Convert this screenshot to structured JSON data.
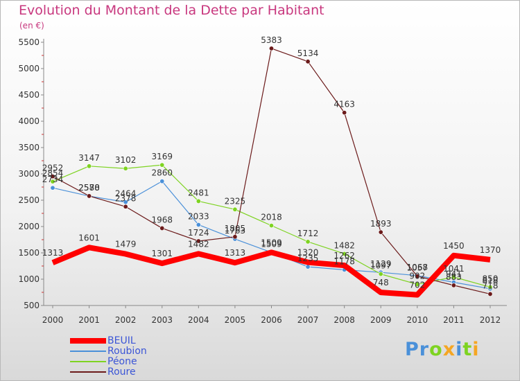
{
  "chart_data": {
    "type": "line",
    "title": "Evolution du Montant de la Dette par Habitant",
    "subtitle": "(en €)",
    "xlabel": "",
    "ylabel": "",
    "categories": [
      "2000",
      "2001",
      "2002",
      "2003",
      "2004",
      "2005",
      "2006",
      "2007",
      "2008",
      "2009",
      "2010",
      "2011",
      "2012"
    ],
    "ylim": [
      500,
      5500
    ],
    "yticks": [
      500,
      1000,
      1500,
      2000,
      2500,
      3000,
      3500,
      4000,
      4500,
      5000,
      5500
    ],
    "grid": false,
    "legend_position": "bottom-left",
    "series": [
      {
        "name": "BEUIL",
        "color": "#ff0000",
        "width": 8,
        "values": [
          1313,
          1601,
          1479,
          1301,
          1482,
          1313,
          1509,
          1320,
          1262,
          748,
          702,
          1450,
          1370
        ]
      },
      {
        "name": "Roubion",
        "color": "#4a90d9",
        "width": 1.2,
        "values": [
          2734,
          2578,
          2464,
          2860,
          2033,
          1763,
          1509,
          1235,
          1178,
          1129,
          1068,
          941,
          818
        ]
      },
      {
        "name": "Péone",
        "color": "#7ed321",
        "width": 1.2,
        "values": [
          2854,
          3147,
          3102,
          3169,
          2481,
          2325,
          2018,
          1712,
          1482,
          1097,
          902,
          1041,
          850
        ]
      },
      {
        "name": "Roure",
        "color": "#6b1a1a",
        "width": 1.2,
        "values": [
          2952,
          2580,
          2378,
          1968,
          1724,
          1805,
          5383,
          5134,
          4163,
          1893,
          1057,
          883,
          718
        ]
      }
    ]
  },
  "logo": {
    "letters": [
      {
        "ch": "P",
        "color": "#4a90d9"
      },
      {
        "ch": "r",
        "color": "#4a90d9"
      },
      {
        "ch": "o",
        "color": "#7ed321"
      },
      {
        "ch": "x",
        "color": "#f5a623"
      },
      {
        "ch": "i",
        "color": "#4a90d9"
      },
      {
        "ch": "t",
        "color": "#7ed321"
      },
      {
        "ch": "i",
        "color": "#f5a623"
      }
    ]
  }
}
